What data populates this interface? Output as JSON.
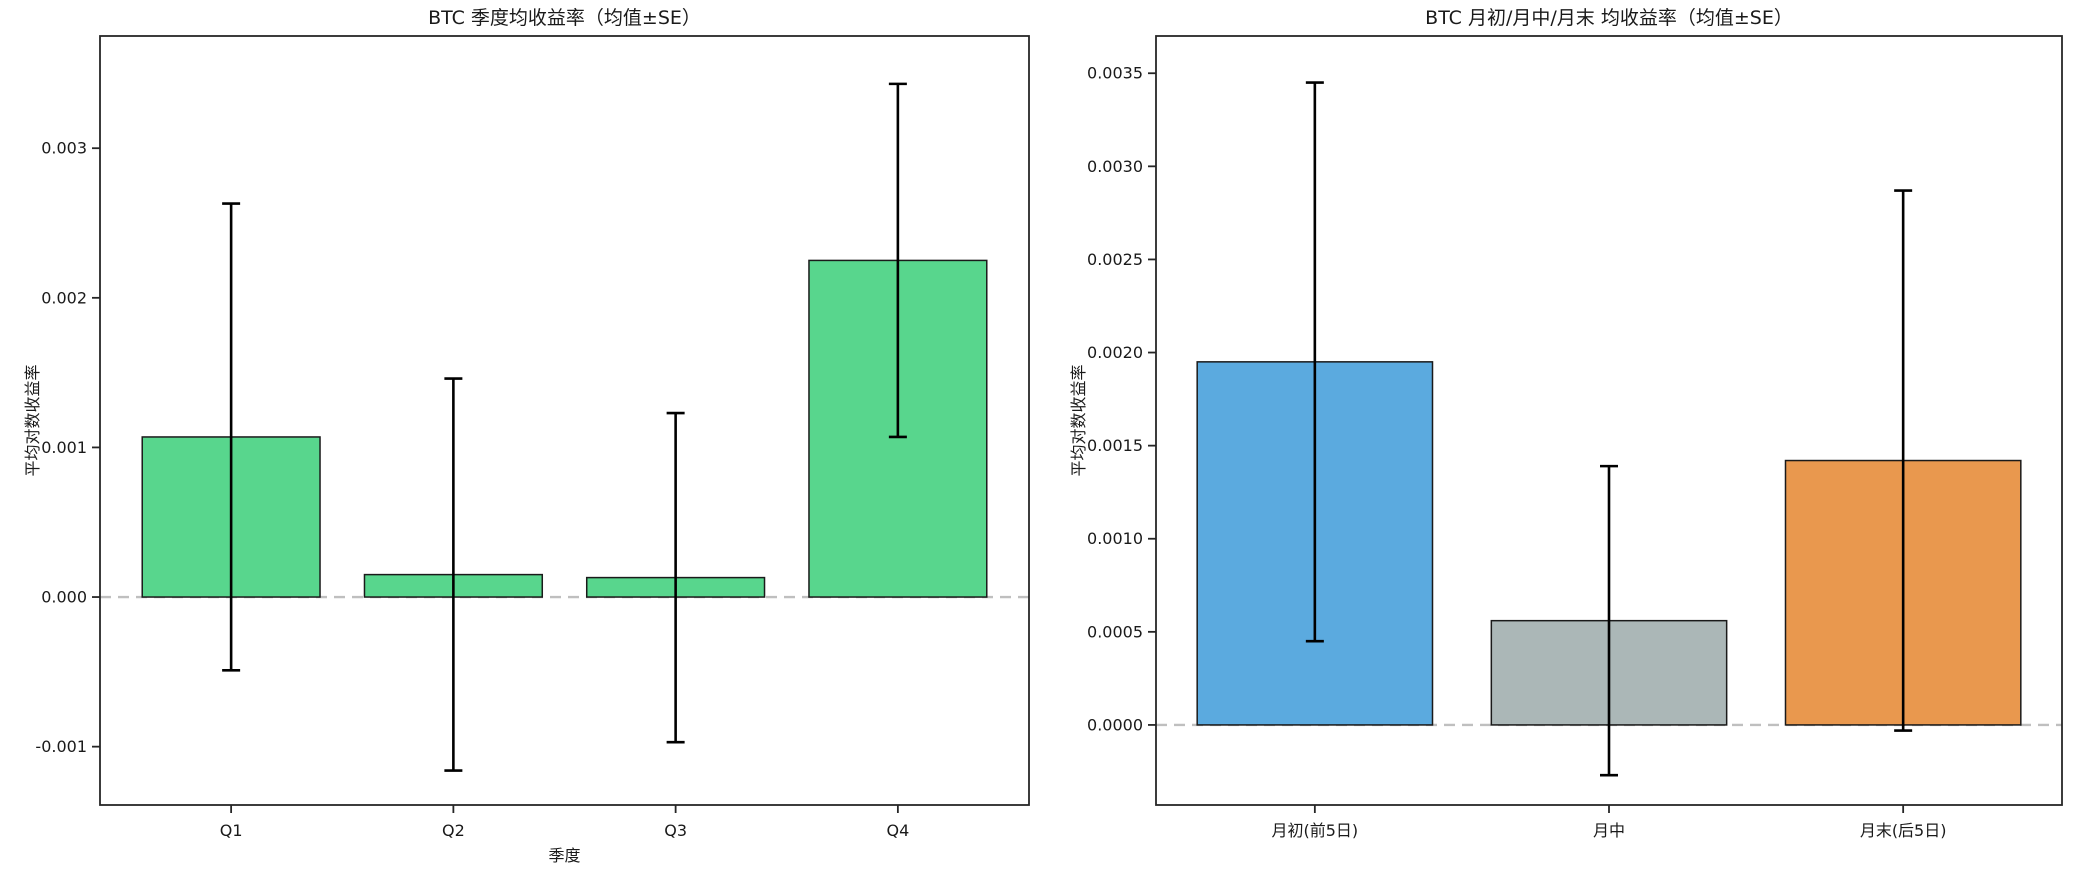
{
  "page": {
    "background": "#ffffff",
    "text_color": "#1a1a1a",
    "axis_color": "#262626",
    "zero_line_color": "#bfbfbf",
    "error_bar_color": "#000000"
  },
  "chart_data": [
    {
      "type": "bar",
      "title": "BTC 季度均收益率（均值±SE）",
      "xlabel": "季度",
      "ylabel": "平均对数收益率",
      "categories": [
        "Q1",
        "Q2",
        "Q3",
        "Q4"
      ],
      "series": [
        {
          "name": "均值",
          "values": [
            0.00107,
            0.00015,
            0.00013,
            0.00225
          ]
        }
      ],
      "error_se": [
        0.00156,
        0.00131,
        0.0011,
        0.00118
      ],
      "bar_colors": [
        "#58d68d",
        "#58d68d",
        "#58d68d",
        "#58d68d"
      ],
      "bar_edge_color": "#1a1a1a",
      "ylim": [
        -0.00139,
        0.00375
      ],
      "yticks": [
        {
          "value": 0.003,
          "label": "0.003"
        },
        {
          "value": 0.002,
          "label": "0.002"
        },
        {
          "value": 0.001,
          "label": "0.001"
        },
        {
          "value": 0.0,
          "label": "0.000"
        },
        {
          "value": -0.001,
          "label": "-0.001"
        }
      ],
      "grid": false,
      "zero_line": {
        "shown": true,
        "style": "dashed"
      },
      "legend": "none"
    },
    {
      "type": "bar",
      "title": "BTC 月初/月中/月末 均收益率（均值±SE）",
      "xlabel": "",
      "ylabel": "平均对数收益率",
      "categories": [
        "月初(前5日)",
        "月中",
        "月末(后5日)"
      ],
      "series": [
        {
          "name": "均值",
          "values": [
            0.00195,
            0.00056,
            0.00142
          ]
        }
      ],
      "error_se": [
        0.0015,
        0.00083,
        0.00145
      ],
      "bar_colors": [
        "#5baadf",
        "#abb7b7",
        "#e9984e"
      ],
      "bar_edge_color": "#1a1a1a",
      "ylim": [
        -0.00043,
        0.0037
      ],
      "yticks": [
        {
          "value": 0.0035,
          "label": "0.0035"
        },
        {
          "value": 0.003,
          "label": "0.0030"
        },
        {
          "value": 0.0025,
          "label": "0.0025"
        },
        {
          "value": 0.002,
          "label": "0.0020"
        },
        {
          "value": 0.0015,
          "label": "0.0015"
        },
        {
          "value": 0.001,
          "label": "0.0010"
        },
        {
          "value": 0.0005,
          "label": "0.0005"
        },
        {
          "value": 0.0,
          "label": "0.0000"
        }
      ],
      "grid": false,
      "zero_line": {
        "shown": true,
        "style": "dashed"
      },
      "legend": "none"
    }
  ]
}
